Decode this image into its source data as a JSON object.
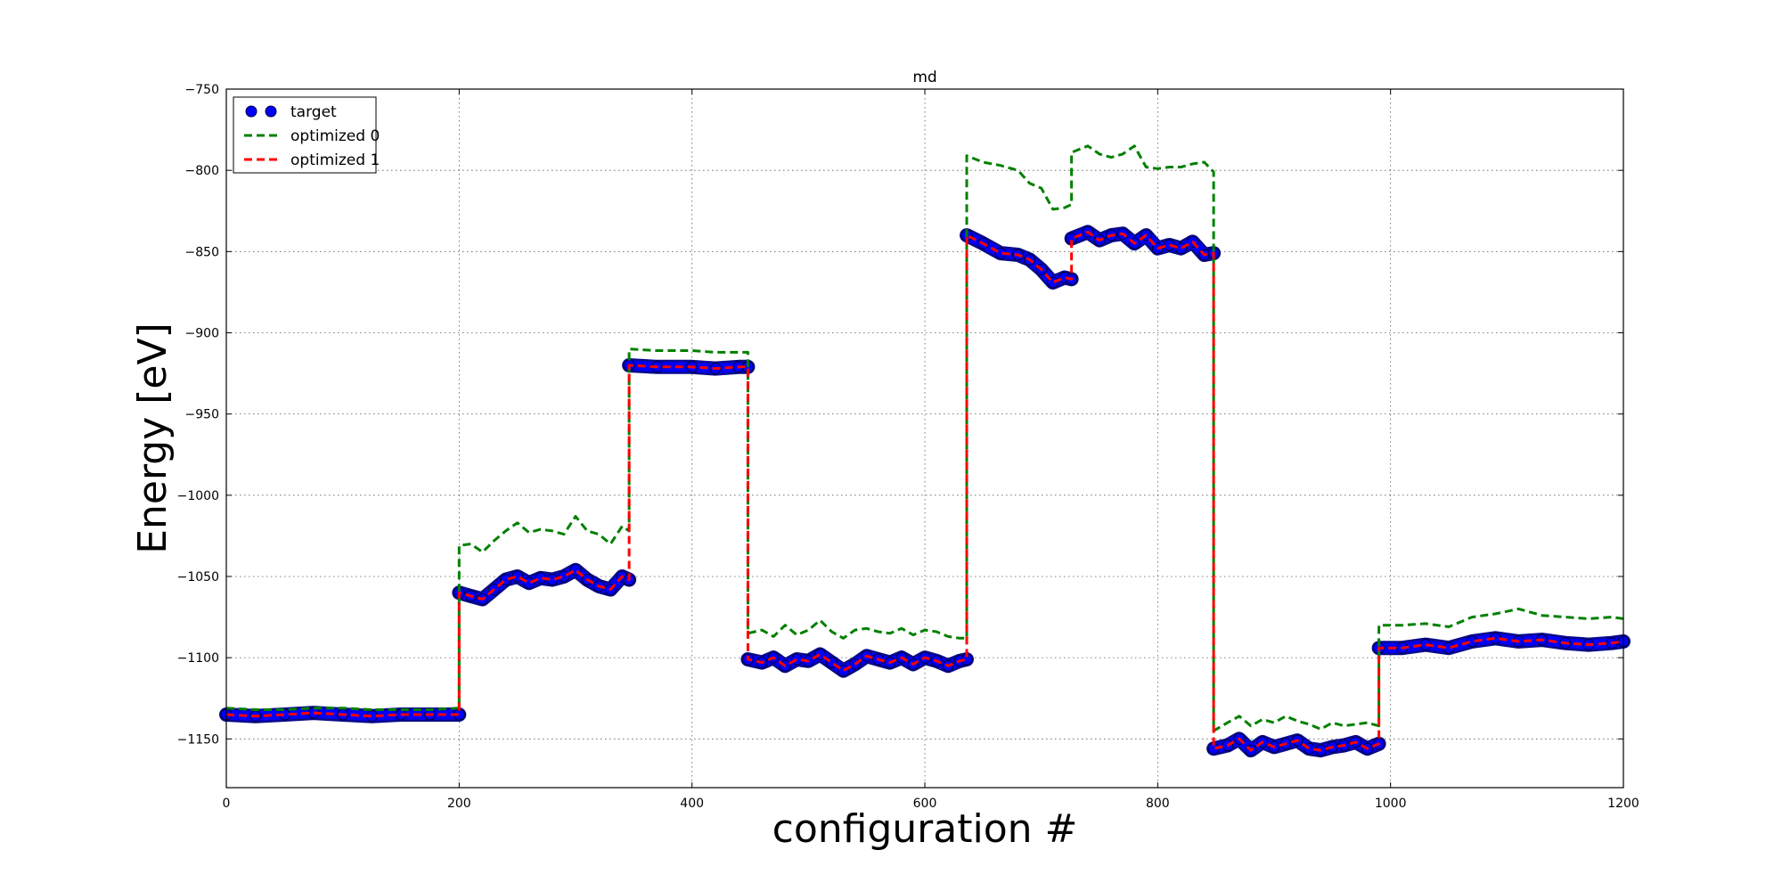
{
  "chart_data": {
    "type": "line",
    "title": "md",
    "xlabel": "configuration #",
    "ylabel": "Energy [eV]",
    "xlim": [
      0,
      1200
    ],
    "ylim": [
      -1180,
      -750
    ],
    "xticks": [
      0,
      200,
      400,
      600,
      800,
      1000,
      1200
    ],
    "yticks": [
      -750,
      -800,
      -850,
      -900,
      -950,
      -1000,
      -1050,
      -1100,
      -1150
    ],
    "grid": true,
    "legend_position": "top-left",
    "series": [
      {
        "name": "target",
        "style": "markers",
        "color": "#0000ff",
        "segments": [
          {
            "x": [
              0,
              25,
              50,
              75,
              100,
              125,
              150,
              175,
              200
            ],
            "y": [
              -1135,
              -1136,
              -1135,
              -1134,
              -1135,
              -1136,
              -1135,
              -1135,
              -1135
            ]
          },
          {
            "x": [
              200,
              210,
              220,
              230,
              240,
              250,
              260,
              270,
              280,
              290,
              300,
              310,
              320,
              330,
              340,
              346
            ],
            "y": [
              -1060,
              -1062,
              -1064,
              -1058,
              -1052,
              -1050,
              -1054,
              -1051,
              -1052,
              -1050,
              -1046,
              -1052,
              -1056,
              -1058,
              -1050,
              -1052
            ]
          },
          {
            "x": [
              346,
              370,
              400,
              420,
              440,
              448
            ],
            "y": [
              -920,
              -921,
              -921,
              -922,
              -921,
              -921
            ]
          },
          {
            "x": [
              448,
              460,
              470,
              480,
              490,
              500,
              510,
              520,
              530,
              540,
              550,
              560,
              570,
              580,
              590,
              600,
              610,
              620,
              630,
              636
            ],
            "y": [
              -1101,
              -1103,
              -1100,
              -1105,
              -1101,
              -1102,
              -1098,
              -1103,
              -1108,
              -1104,
              -1099,
              -1101,
              -1103,
              -1100,
              -1104,
              -1100,
              -1102,
              -1105,
              -1102,
              -1101
            ]
          },
          {
            "x": [
              636,
              650,
              665,
              680,
              690,
              700,
              710,
              720,
              726
            ],
            "y": [
              -840,
              -845,
              -851,
              -852,
              -855,
              -861,
              -869,
              -866,
              -867
            ]
          },
          {
            "x": [
              726,
              740,
              750,
              760,
              770,
              780,
              790,
              800,
              810,
              820,
              830,
              840,
              848
            ],
            "y": [
              -842,
              -838,
              -843,
              -840,
              -839,
              -845,
              -840,
              -848,
              -846,
              -848,
              -844,
              -852,
              -851
            ]
          },
          {
            "x": [
              848,
              860,
              870,
              880,
              890,
              900,
              910,
              920,
              930,
              940,
              950,
              960,
              970,
              980,
              990
            ],
            "y": [
              -1156,
              -1154,
              -1150,
              -1157,
              -1152,
              -1155,
              -1153,
              -1151,
              -1156,
              -1157,
              -1155,
              -1154,
              -1152,
              -1156,
              -1153
            ]
          },
          {
            "x": [
              990,
              1010,
              1030,
              1050,
              1070,
              1090,
              1110,
              1130,
              1150,
              1170,
              1190,
              1200
            ],
            "y": [
              -1094,
              -1094,
              -1092,
              -1094,
              -1090,
              -1088,
              -1090,
              -1089,
              -1091,
              -1092,
              -1091,
              -1090
            ]
          }
        ]
      },
      {
        "name": "optimized 0",
        "style": "dashed",
        "color": "#008000",
        "segments": [
          {
            "x": [
              0,
              25,
              50,
              75,
              100,
              125,
              150,
              175,
              200
            ],
            "y": [
              -1131,
              -1132,
              -1132,
              -1131,
              -1131,
              -1132,
              -1132,
              -1132,
              -1131
            ]
          },
          {
            "x": [
              200,
              210,
              220,
              230,
              240,
              250,
              260,
              270,
              280,
              290,
              300,
              310,
              320,
              330,
              340,
              346
            ],
            "y": [
              -1031,
              -1030,
              -1035,
              -1028,
              -1022,
              -1017,
              -1023,
              -1021,
              -1022,
              -1024,
              -1013,
              -1022,
              -1024,
              -1030,
              -1019,
              -1022
            ]
          },
          {
            "x": [
              346,
              370,
              400,
              420,
              440,
              448
            ],
            "y": [
              -910,
              -911,
              -911,
              -912,
              -912,
              -912
            ]
          },
          {
            "x": [
              448,
              460,
              470,
              480,
              490,
              500,
              510,
              520,
              530,
              540,
              550,
              560,
              570,
              580,
              590,
              600,
              610,
              620,
              630,
              636
            ],
            "y": [
              -1085,
              -1083,
              -1087,
              -1080,
              -1086,
              -1083,
              -1077,
              -1084,
              -1088,
              -1083,
              -1082,
              -1084,
              -1085,
              -1082,
              -1086,
              -1083,
              -1084,
              -1087,
              -1088,
              -1088
            ]
          },
          {
            "x": [
              636,
              650,
              665,
              680,
              690,
              700,
              710,
              720,
              726
            ],
            "y": [
              -791,
              -795,
              -797,
              -800,
              -808,
              -811,
              -824,
              -823,
              -821
            ]
          },
          {
            "x": [
              726,
              740,
              750,
              760,
              770,
              780,
              790,
              800,
              810,
              820,
              830,
              840,
              848
            ],
            "y": [
              -789,
              -785,
              -790,
              -792,
              -790,
              -785,
              -798,
              -799,
              -798,
              -798,
              -796,
              -795,
              -801
            ]
          },
          {
            "x": [
              848,
              860,
              870,
              880,
              890,
              900,
              910,
              920,
              930,
              940,
              950,
              960,
              970,
              980,
              990
            ],
            "y": [
              -1145,
              -1140,
              -1136,
              -1142,
              -1138,
              -1140,
              -1136,
              -1139,
              -1141,
              -1144,
              -1140,
              -1142,
              -1141,
              -1140,
              -1142
            ]
          },
          {
            "x": [
              990,
              1010,
              1030,
              1050,
              1070,
              1090,
              1110,
              1130,
              1150,
              1170,
              1190,
              1200
            ],
            "y": [
              -1080,
              -1080,
              -1079,
              -1081,
              -1075,
              -1073,
              -1070,
              -1074,
              -1075,
              -1076,
              -1075,
              -1076
            ]
          }
        ]
      },
      {
        "name": "optimized 1",
        "style": "dashed",
        "color": "#ff0000",
        "segments": [
          {
            "x": [
              0,
              25,
              50,
              75,
              100,
              125,
              150,
              175,
              200
            ],
            "y": [
              -1135,
              -1136,
              -1135,
              -1134,
              -1135,
              -1136,
              -1135,
              -1135,
              -1135
            ]
          },
          {
            "x": [
              200,
              210,
              220,
              230,
              240,
              250,
              260,
              270,
              280,
              290,
              300,
              310,
              320,
              330,
              340,
              346
            ],
            "y": [
              -1060,
              -1062,
              -1064,
              -1058,
              -1052,
              -1050,
              -1054,
              -1051,
              -1052,
              -1050,
              -1046,
              -1052,
              -1056,
              -1058,
              -1050,
              -1052
            ]
          },
          {
            "x": [
              346,
              370,
              400,
              420,
              440,
              448
            ],
            "y": [
              -920,
              -921,
              -921,
              -922,
              -921,
              -921
            ]
          },
          {
            "x": [
              448,
              460,
              470,
              480,
              490,
              500,
              510,
              520,
              530,
              540,
              550,
              560,
              570,
              580,
              590,
              600,
              610,
              620,
              630,
              636
            ],
            "y": [
              -1101,
              -1103,
              -1100,
              -1105,
              -1101,
              -1102,
              -1098,
              -1103,
              -1108,
              -1104,
              -1099,
              -1101,
              -1103,
              -1100,
              -1104,
              -1100,
              -1102,
              -1105,
              -1102,
              -1101
            ]
          },
          {
            "x": [
              636,
              650,
              665,
              680,
              690,
              700,
              710,
              720,
              726
            ],
            "y": [
              -840,
              -845,
              -851,
              -852,
              -855,
              -861,
              -869,
              -866,
              -867
            ]
          },
          {
            "x": [
              726,
              740,
              750,
              760,
              770,
              780,
              790,
              800,
              810,
              820,
              830,
              840,
              848
            ],
            "y": [
              -842,
              -838,
              -843,
              -840,
              -839,
              -845,
              -840,
              -848,
              -846,
              -848,
              -844,
              -852,
              -851
            ]
          },
          {
            "x": [
              848,
              860,
              870,
              880,
              890,
              900,
              910,
              920,
              930,
              940,
              950,
              960,
              970,
              980,
              990
            ],
            "y": [
              -1156,
              -1154,
              -1150,
              -1157,
              -1152,
              -1155,
              -1153,
              -1151,
              -1156,
              -1157,
              -1155,
              -1154,
              -1152,
              -1156,
              -1153
            ]
          },
          {
            "x": [
              990,
              1010,
              1030,
              1050,
              1070,
              1090,
              1110,
              1130,
              1150,
              1170,
              1190,
              1200
            ],
            "y": [
              -1094,
              -1094,
              -1092,
              -1094,
              -1090,
              -1088,
              -1090,
              -1089,
              -1091,
              -1092,
              -1091,
              -1090
            ]
          }
        ]
      }
    ]
  }
}
